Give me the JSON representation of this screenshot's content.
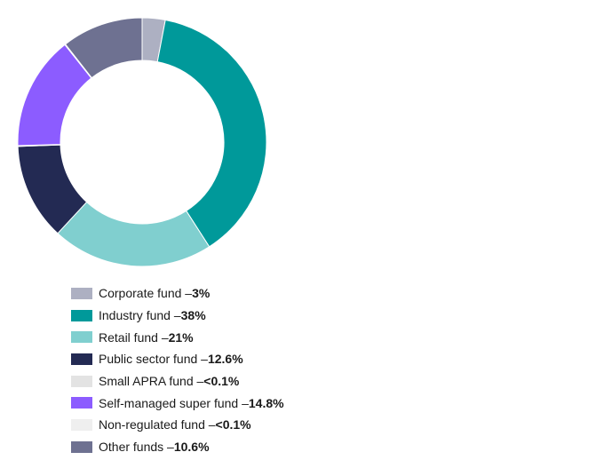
{
  "chart_data": {
    "type": "pie",
    "title": "",
    "donut": true,
    "legend_position": "bottom-left",
    "separator": " – ",
    "slices": [
      {
        "label": "Corporate fund",
        "value_label": "3%",
        "value": 3,
        "color": "#adb0c2"
      },
      {
        "label": "Industry fund",
        "value_label": "38%",
        "value": 38,
        "color": "#00999a"
      },
      {
        "label": "Retail fund",
        "value_label": "21%",
        "value": 21,
        "color": "#80cfcf"
      },
      {
        "label": "Public sector fund",
        "value_label": "12.6%",
        "value": 12.6,
        "color": "#232a53"
      },
      {
        "label": "Small APRA fund",
        "value_label": "<0.1%",
        "value": 0.1,
        "color": "#e3e3e3"
      },
      {
        "label": "Self-managed super fund",
        "value_label": "14.8%",
        "value": 14.8,
        "color": "#8c5cff"
      },
      {
        "label": "Non-regulated fund",
        "value_label": "<0.1%",
        "value": 0.1,
        "color": "#efefef"
      },
      {
        "label": "Other funds",
        "value_label": "10.6%",
        "value": 10.6,
        "color": "#6e7191"
      }
    ]
  }
}
